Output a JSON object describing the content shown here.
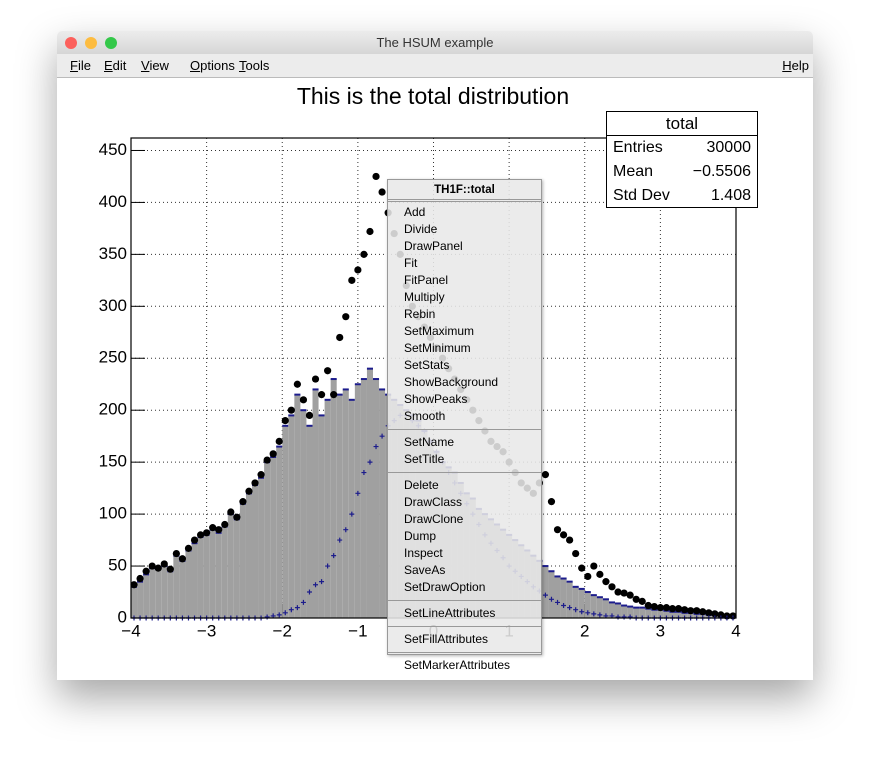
{
  "window": {
    "title": "The HSUM example",
    "menu": [
      "File",
      "Edit",
      "View",
      "Options",
      "Tools"
    ],
    "help": "Help"
  },
  "chart_data": {
    "type": "histogram",
    "title": "This is the total distribution",
    "bins": [
      -4,
      -3.92,
      -3.84,
      -3.76,
      -3.68,
      -3.6,
      -3.52,
      -3.44,
      -3.36,
      -3.28,
      -3.2,
      -3.12,
      -3.04,
      -2.96,
      -2.88,
      -2.8,
      -2.72,
      -2.64,
      -2.56,
      -2.48,
      -2.4,
      -2.32,
      -2.24,
      -2.16,
      -2.08,
      -2,
      -1.92,
      -1.84,
      -1.76,
      -1.68,
      -1.6,
      -1.52,
      -1.44,
      -1.36,
      -1.28,
      -1.2,
      -1.12,
      -1.04,
      -0.96,
      -0.88,
      -0.8,
      -0.72,
      -0.64,
      -0.56,
      -0.48,
      -0.4,
      -0.32,
      -0.24,
      -0.16,
      -0.08,
      0,
      0.08,
      0.16,
      0.24,
      0.32,
      0.4,
      0.48,
      0.56,
      0.64,
      0.72,
      0.8,
      0.88,
      0.96,
      1.04,
      1.12,
      1.2,
      1.28,
      1.36,
      1.44,
      1.52,
      1.6,
      1.68,
      1.76,
      1.84,
      1.92,
      2,
      2.08,
      2.16,
      2.24,
      2.32,
      2.4,
      2.48,
      2.56,
      2.64,
      2.72,
      2.8,
      2.88,
      2.96,
      3.04,
      3.12,
      3.2,
      3.28,
      3.36,
      3.44,
      3.52,
      3.6,
      3.68,
      3.76,
      3.84,
      3.92,
      4
    ],
    "series": [
      {
        "color": "#a0a0a0",
        "edge_color": "#1c1c8c",
        "marker": "fill",
        "values": [
          30,
          35,
          42,
          48,
          47,
          50,
          45,
          60,
          55,
          65,
          72,
          78,
          80,
          85,
          82,
          88,
          100,
          95,
          110,
          120,
          128,
          135,
          150,
          155,
          165,
          185,
          195,
          215,
          200,
          185,
          220,
          195,
          210,
          230,
          215,
          220,
          210,
          225,
          230,
          240,
          230,
          220,
          215,
          210,
          205,
          200,
          195,
          190,
          180,
          170,
          160,
          150,
          145,
          140,
          130,
          120,
          115,
          105,
          100,
          95,
          90,
          85,
          80,
          75,
          70,
          65,
          60,
          55,
          50,
          45,
          40,
          38,
          35,
          30,
          28,
          25,
          22,
          20,
          18,
          15,
          14,
          12,
          11,
          10,
          10,
          9,
          8,
          8,
          7,
          6,
          6,
          5,
          5,
          4,
          4,
          3,
          3,
          3,
          2,
          2
        ]
      },
      {
        "color": "#000000",
        "marker": "circle",
        "values": [
          32,
          38,
          45,
          50,
          48,
          52,
          47,
          62,
          57,
          67,
          75,
          80,
          82,
          87,
          85,
          90,
          102,
          97,
          112,
          122,
          130,
          138,
          152,
          158,
          170,
          190,
          200,
          225,
          210,
          195,
          230,
          215,
          238,
          215,
          270,
          290,
          325,
          335,
          350,
          372,
          425,
          410,
          390,
          370,
          350,
          320,
          300,
          290,
          280,
          270,
          260,
          250,
          240,
          230,
          220,
          210,
          200,
          190,
          180,
          170,
          165,
          160,
          150,
          140,
          130,
          125,
          120,
          130,
          138,
          112,
          85,
          80,
          75,
          62,
          48,
          40,
          50,
          42,
          35,
          30,
          25,
          24,
          22,
          18,
          16,
          12,
          11,
          10,
          10,
          9,
          9,
          8,
          7,
          7,
          6,
          5,
          4,
          3,
          2,
          2
        ]
      },
      {
        "color": "#1c1c8c",
        "marker": "cross",
        "values": [
          0,
          0,
          0,
          0,
          0,
          0,
          0,
          0,
          0,
          0,
          0,
          0,
          0,
          0,
          0,
          0,
          0,
          0,
          0,
          0,
          0,
          0,
          1,
          2,
          3,
          5,
          8,
          10,
          15,
          25,
          32,
          35,
          50,
          60,
          75,
          85,
          100,
          120,
          140,
          150,
          165,
          175,
          185,
          190,
          195,
          195,
          190,
          185,
          180,
          170,
          160,
          150,
          140,
          130,
          120,
          110,
          100,
          90,
          80,
          72,
          65,
          58,
          50,
          45,
          40,
          35,
          30,
          26,
          22,
          18,
          15,
          12,
          10,
          8,
          6,
          5,
          4,
          3,
          2,
          2,
          1,
          1,
          1,
          0,
          0,
          0,
          0,
          0,
          0,
          0,
          0,
          0,
          0,
          0,
          0,
          0,
          0,
          0,
          0,
          0
        ]
      }
    ],
    "xlim": [
      -4,
      4
    ],
    "xticks": [
      {
        "value": -4,
        "label": "−4"
      },
      {
        "value": -3,
        "label": "−3"
      },
      {
        "value": -2,
        "label": "−2"
      },
      {
        "value": -1,
        "label": "−1"
      },
      0,
      1,
      2,
      3,
      4
    ],
    "ylim": [
      0,
      462
    ],
    "yticks": [
      0,
      50,
      100,
      150,
      200,
      250,
      300,
      350,
      400,
      450
    ],
    "grid": true
  },
  "stats": {
    "title": "total",
    "rows": [
      [
        "Entries",
        "30000"
      ],
      [
        "Mean",
        "−0.5506"
      ],
      [
        "Std Dev",
        "1.408"
      ]
    ]
  },
  "context_menu": {
    "title": "TH1F::total",
    "groups": [
      [
        "Add",
        "Divide",
        "DrawPanel",
        "Fit",
        "FitPanel",
        "Multiply",
        "Rebin",
        "SetMaximum",
        "SetMinimum",
        "SetStats",
        "ShowBackground",
        "ShowPeaks",
        "Smooth"
      ],
      [
        "SetName",
        "SetTitle"
      ],
      [
        "Delete",
        "DrawClass",
        "DrawClone",
        "Dump",
        "Inspect",
        "SaveAs",
        "SetDrawOption"
      ],
      [
        "SetLineAttributes"
      ],
      [
        "SetFillAttributes"
      ],
      [
        "SetMarkerAttributes"
      ]
    ]
  }
}
